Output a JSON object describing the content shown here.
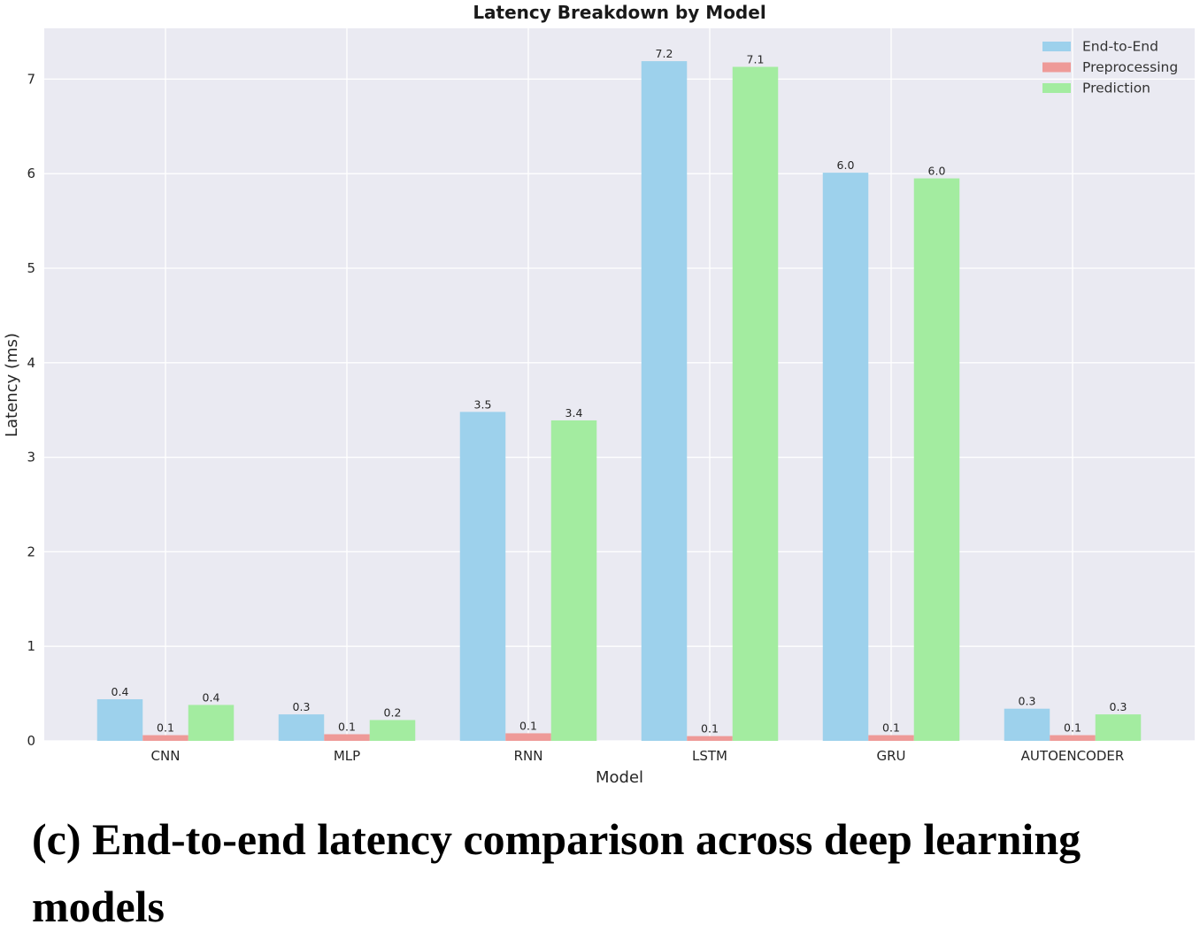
{
  "chart_data": {
    "type": "bar",
    "title": "Latency Breakdown by Model",
    "xlabel": "Model",
    "ylabel": "Latency (ms)",
    "categories": [
      "CNN",
      "MLP",
      "RNN",
      "LSTM",
      "GRU",
      "AUTOENCODER"
    ],
    "series": [
      {
        "name": "End-to-End",
        "color": "#9dd1ec",
        "values": [
          0.44,
          0.28,
          3.48,
          7.19,
          6.01,
          0.34
        ],
        "labels": [
          "0.4",
          "0.3",
          "3.5",
          "7.2",
          "6.0",
          "0.3"
        ]
      },
      {
        "name": "Preprocessing",
        "color": "#ee9a98",
        "values": [
          0.06,
          0.07,
          0.08,
          0.05,
          0.06,
          0.06
        ],
        "labels": [
          "0.1",
          "0.1",
          "0.1",
          "0.1",
          "0.1",
          "0.1"
        ]
      },
      {
        "name": "Prediction",
        "color": "#a3eca0",
        "values": [
          0.38,
          0.22,
          3.39,
          7.13,
          5.95,
          0.28
        ],
        "labels": [
          "0.4",
          "0.2",
          "3.4",
          "7.1",
          "6.0",
          "0.3"
        ]
      }
    ],
    "ylim": [
      0,
      7.5
    ],
    "yticks": [
      0,
      1,
      2,
      3,
      4,
      5,
      6,
      7
    ],
    "grid": true,
    "legend_position": "top-right",
    "background": "#eaeaf2"
  },
  "caption": "(c) End-to-end latency comparison across deep learning models"
}
